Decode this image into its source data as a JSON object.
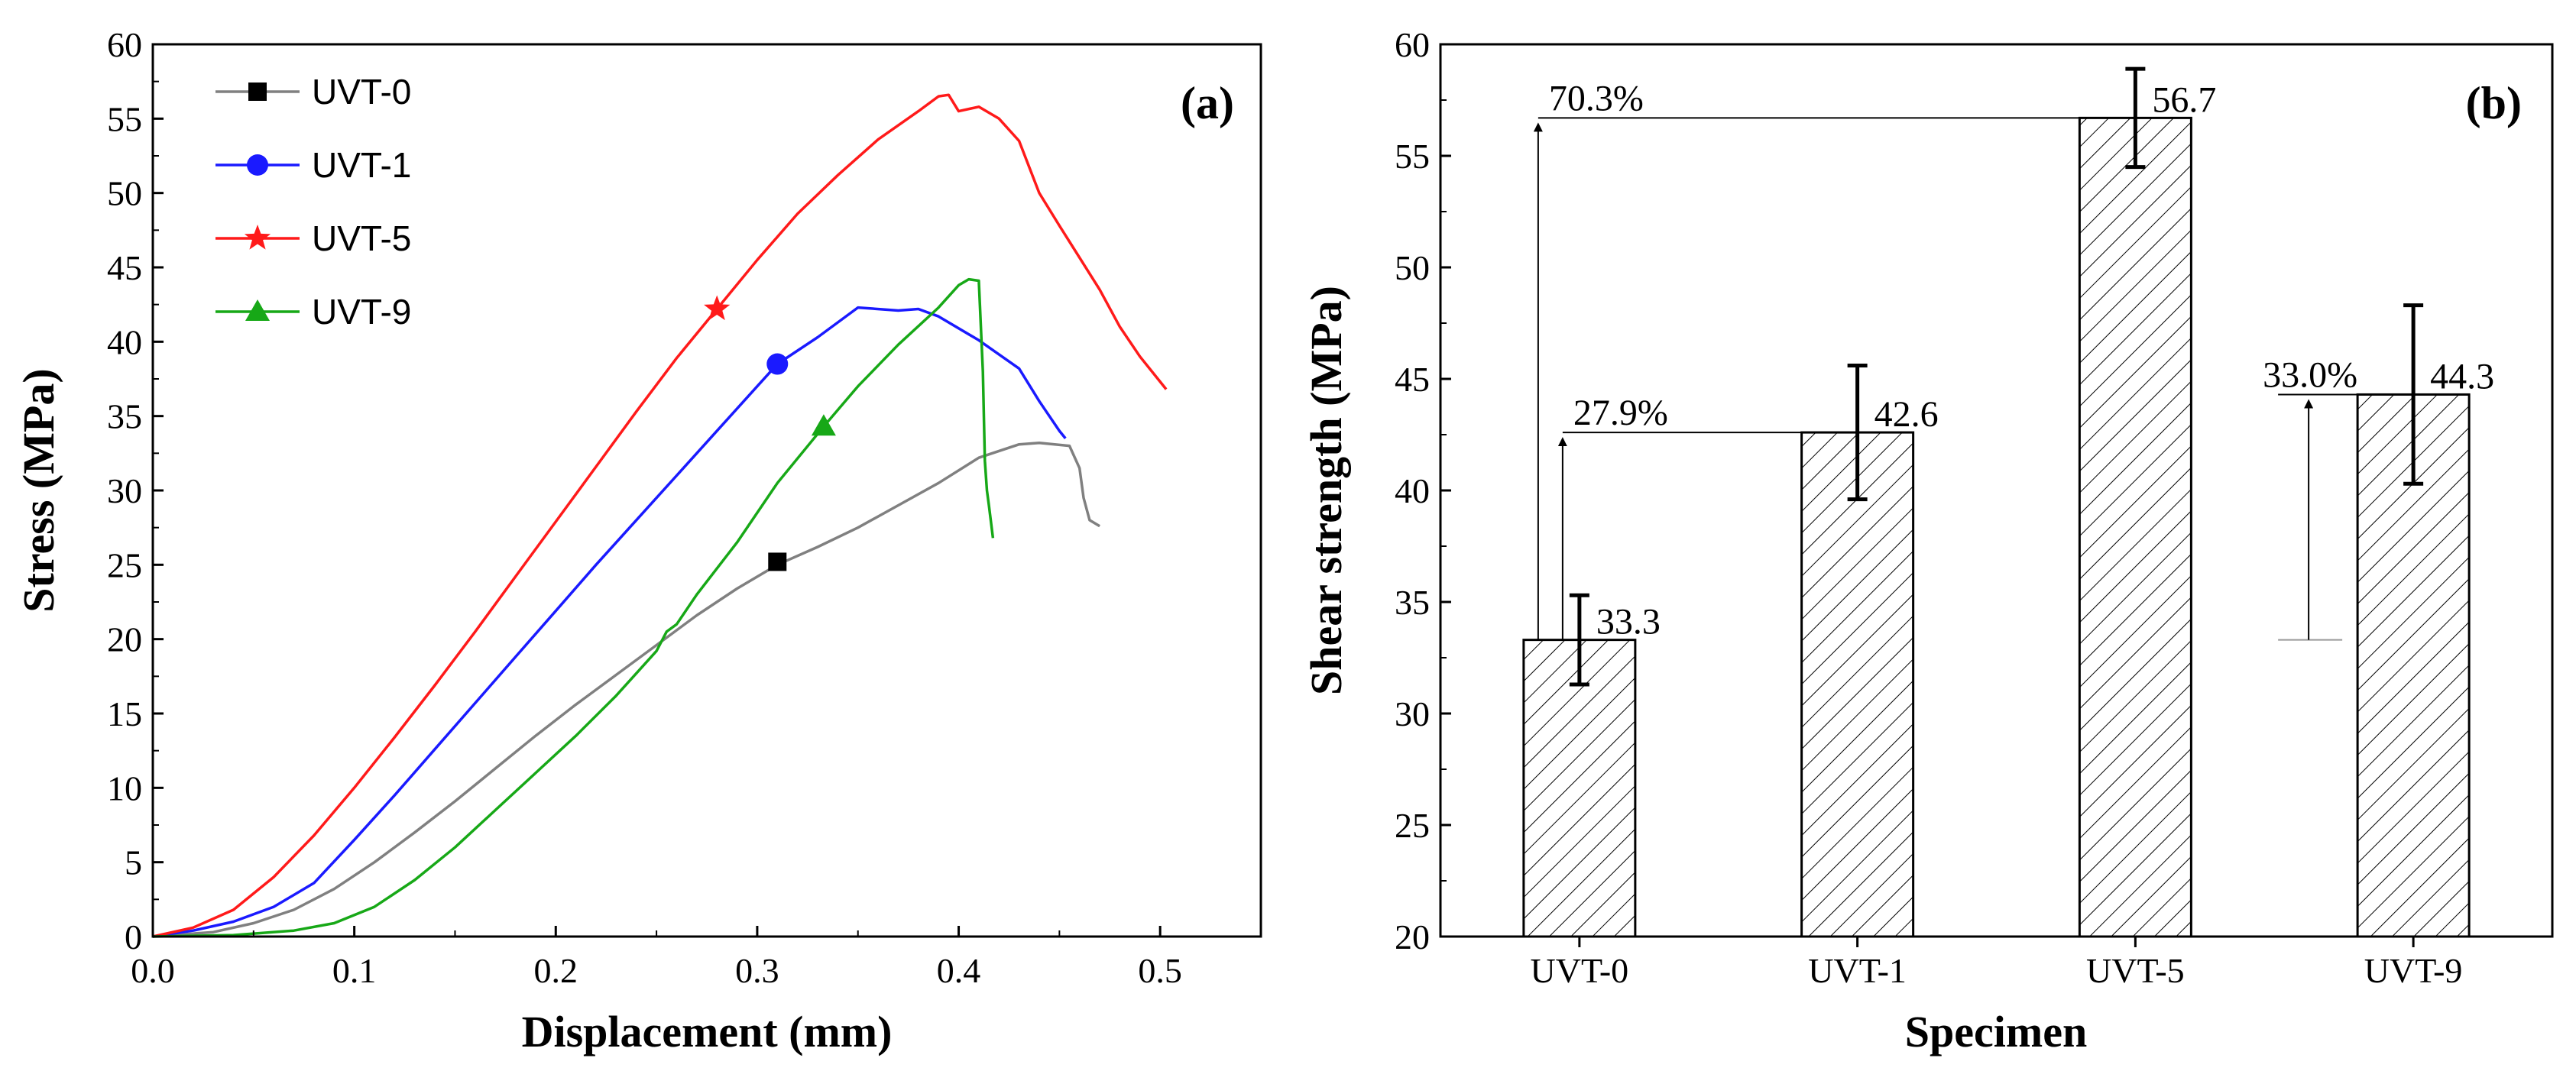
{
  "chart_data": [
    {
      "panel": "(a)",
      "type": "line",
      "xlabel": "Displacement (mm)",
      "ylabel": "Stress (MPa)",
      "xlim": [
        0.0,
        0.55
      ],
      "ylim": [
        0,
        60
      ],
      "xticks": [
        "0.0",
        "0.1",
        "0.2",
        "0.3",
        "0.4",
        "0.5"
      ],
      "yticks": [
        "0",
        "5",
        "10",
        "15",
        "20",
        "25",
        "30",
        "35",
        "40",
        "45",
        "50",
        "55",
        "60"
      ],
      "legend_position": "top-left",
      "series": [
        {
          "name": "UVT-0",
          "color": "#808080",
          "marker": "square",
          "marker_color": "#000000",
          "marker_point": [
            0.31,
            25.2
          ],
          "points": [
            [
              0,
              0
            ],
            [
              0.03,
              0.3
            ],
            [
              0.05,
              0.9
            ],
            [
              0.07,
              1.8
            ],
            [
              0.09,
              3.2
            ],
            [
              0.11,
              5.0
            ],
            [
              0.13,
              7.0
            ],
            [
              0.15,
              9.1
            ],
            [
              0.17,
              11.3
            ],
            [
              0.19,
              13.5
            ],
            [
              0.21,
              15.6
            ],
            [
              0.23,
              17.6
            ],
            [
              0.25,
              19.6
            ],
            [
              0.27,
              21.6
            ],
            [
              0.29,
              23.4
            ],
            [
              0.31,
              25.0
            ],
            [
              0.33,
              26.2
            ],
            [
              0.35,
              27.5
            ],
            [
              0.37,
              29.0
            ],
            [
              0.39,
              30.5
            ],
            [
              0.41,
              32.2
            ],
            [
              0.43,
              33.1
            ],
            [
              0.44,
              33.2
            ],
            [
              0.455,
              33.0
            ],
            [
              0.46,
              31.5
            ],
            [
              0.462,
              29.5
            ],
            [
              0.465,
              28.0
            ],
            [
              0.47,
              27.6
            ]
          ]
        },
        {
          "name": "UVT-1",
          "color": "#1a1aff",
          "marker": "circle",
          "marker_color": "#1a1aff",
          "marker_point": [
            0.31,
            38.5
          ],
          "points": [
            [
              0,
              0
            ],
            [
              0.02,
              0.4
            ],
            [
              0.04,
              1.0
            ],
            [
              0.06,
              2.0
            ],
            [
              0.08,
              3.6
            ],
            [
              0.1,
              6.5
            ],
            [
              0.12,
              9.5
            ],
            [
              0.14,
              12.6
            ],
            [
              0.16,
              15.7
            ],
            [
              0.18,
              18.8
            ],
            [
              0.2,
              21.9
            ],
            [
              0.22,
              25.0
            ],
            [
              0.24,
              28.0
            ],
            [
              0.26,
              31.0
            ],
            [
              0.28,
              34.0
            ],
            [
              0.3,
              37.0
            ],
            [
              0.31,
              38.5
            ],
            [
              0.33,
              40.3
            ],
            [
              0.35,
              42.3
            ],
            [
              0.37,
              42.1
            ],
            [
              0.38,
              42.2
            ],
            [
              0.39,
              41.7
            ],
            [
              0.41,
              40.1
            ],
            [
              0.43,
              38.2
            ],
            [
              0.44,
              36.0
            ],
            [
              0.45,
              34.0
            ],
            [
              0.453,
              33.5
            ]
          ]
        },
        {
          "name": "UVT-5",
          "color": "#ff1a1a",
          "marker": "star",
          "marker_color": "#ff1a1a",
          "marker_point": [
            0.28,
            42.2
          ],
          "points": [
            [
              0,
              0
            ],
            [
              0.02,
              0.6
            ],
            [
              0.04,
              1.8
            ],
            [
              0.06,
              4.0
            ],
            [
              0.08,
              6.8
            ],
            [
              0.1,
              10.0
            ],
            [
              0.12,
              13.4
            ],
            [
              0.14,
              16.9
            ],
            [
              0.16,
              20.5
            ],
            [
              0.18,
              24.2
            ],
            [
              0.2,
              27.9
            ],
            [
              0.22,
              31.6
            ],
            [
              0.24,
              35.3
            ],
            [
              0.26,
              38.9
            ],
            [
              0.28,
              42.2
            ],
            [
              0.3,
              45.5
            ],
            [
              0.32,
              48.6
            ],
            [
              0.34,
              51.2
            ],
            [
              0.36,
              53.6
            ],
            [
              0.38,
              55.5
            ],
            [
              0.39,
              56.5
            ],
            [
              0.395,
              56.6
            ],
            [
              0.4,
              55.5
            ],
            [
              0.41,
              55.8
            ],
            [
              0.42,
              55.0
            ],
            [
              0.43,
              53.5
            ],
            [
              0.44,
              50.0
            ],
            [
              0.45,
              47.8
            ],
            [
              0.47,
              43.5
            ],
            [
              0.48,
              41.0
            ],
            [
              0.49,
              39.0
            ],
            [
              0.503,
              36.8
            ]
          ]
        },
        {
          "name": "UVT-9",
          "color": "#17a817",
          "marker": "triangle",
          "marker_color": "#17a817",
          "marker_point": [
            0.333,
            34.3
          ],
          "points": [
            [
              0,
              0
            ],
            [
              0.04,
              0.1
            ],
            [
              0.07,
              0.4
            ],
            [
              0.09,
              0.9
            ],
            [
              0.11,
              2.0
            ],
            [
              0.13,
              3.8
            ],
            [
              0.15,
              6.0
            ],
            [
              0.17,
              8.5
            ],
            [
              0.19,
              11.0
            ],
            [
              0.21,
              13.5
            ],
            [
              0.23,
              16.2
            ],
            [
              0.25,
              19.2
            ],
            [
              0.255,
              20.5
            ],
            [
              0.26,
              21.0
            ],
            [
              0.27,
              23.0
            ],
            [
              0.29,
              26.5
            ],
            [
              0.31,
              30.5
            ],
            [
              0.333,
              34.3
            ],
            [
              0.35,
              37.0
            ],
            [
              0.37,
              39.8
            ],
            [
              0.39,
              42.3
            ],
            [
              0.4,
              43.8
            ],
            [
              0.405,
              44.2
            ],
            [
              0.41,
              44.1
            ],
            [
              0.412,
              38.0
            ],
            [
              0.413,
              32.0
            ],
            [
              0.414,
              30.0
            ],
            [
              0.415,
              29.0
            ],
            [
              0.417,
              26.8
            ]
          ]
        }
      ]
    },
    {
      "panel": "(b)",
      "type": "bar",
      "xlabel": "Specimen",
      "ylabel": "Shear strength (MPa)",
      "ylim": [
        20,
        60
      ],
      "yticks": [
        "20",
        "25",
        "30",
        "35",
        "40",
        "45",
        "50",
        "55",
        "60"
      ],
      "categories": [
        "UVT-0",
        "UVT-1",
        "UVT-5",
        "UVT-9"
      ],
      "values": [
        33.3,
        42.6,
        56.7,
        44.3
      ],
      "value_labels": [
        "33.3",
        "42.6",
        "56.7",
        "44.3"
      ],
      "error_bars": [
        2.0,
        3.0,
        2.2,
        4.0
      ],
      "annotations": [
        {
          "text": "70.3%",
          "from_value": 33.3,
          "to_value": 56.7,
          "from_category": "UVT-0",
          "to_category": "UVT-5"
        },
        {
          "text": "27.9%",
          "from_value": 33.3,
          "to_value": 42.6,
          "from_category": "UVT-0",
          "to_category": "UVT-1"
        },
        {
          "text": "33.0%",
          "from_value": 33.3,
          "to_value": 44.3,
          "from_category": "UVT-9",
          "to_category": "UVT-9"
        }
      ]
    }
  ]
}
